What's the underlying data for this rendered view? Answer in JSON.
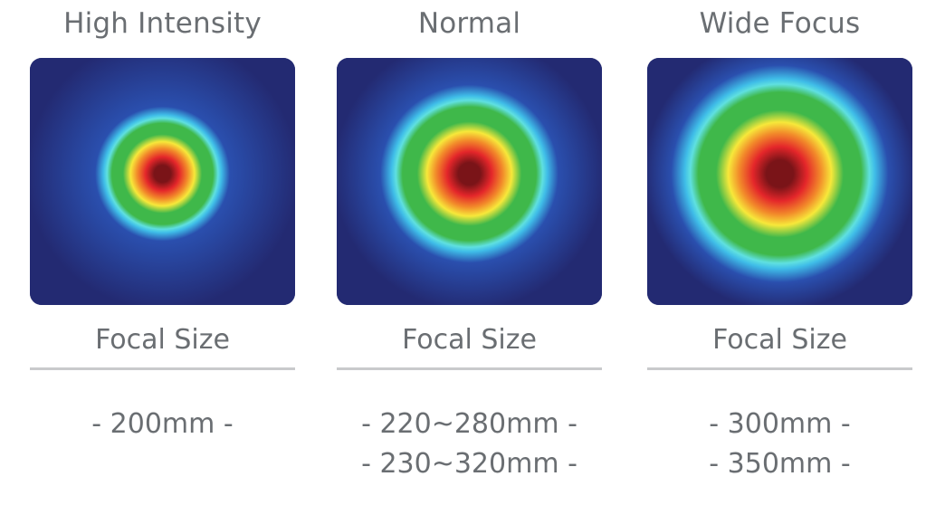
{
  "modes": [
    {
      "title": "High Intensity",
      "focal_label": "Focal Size",
      "sizes": [
        "- 200mm -"
      ],
      "spot_spread": 0.62
    },
    {
      "title": "Normal",
      "focal_label": "Focal Size",
      "sizes": [
        "- 220~280mm -",
        "- 230~320mm -"
      ],
      "spot_spread": 0.82
    },
    {
      "title": "Wide Focus",
      "focal_label": "Focal Size",
      "sizes": [
        "- 300mm -",
        "- 350mm -"
      ],
      "spot_spread": 1.0
    }
  ],
  "colors": {
    "background": "#232a72",
    "outer_glow": "#2a4fae",
    "blue_ring": "#3fbde8",
    "cyan": "#5fe0e0",
    "green": "#3fb84a",
    "yellow": "#f7e83a",
    "orange": "#f28a2a",
    "red": "#e4262a",
    "dark_red": "#7a1418",
    "text": "#6a6e72",
    "divider": "#c9cacc"
  }
}
